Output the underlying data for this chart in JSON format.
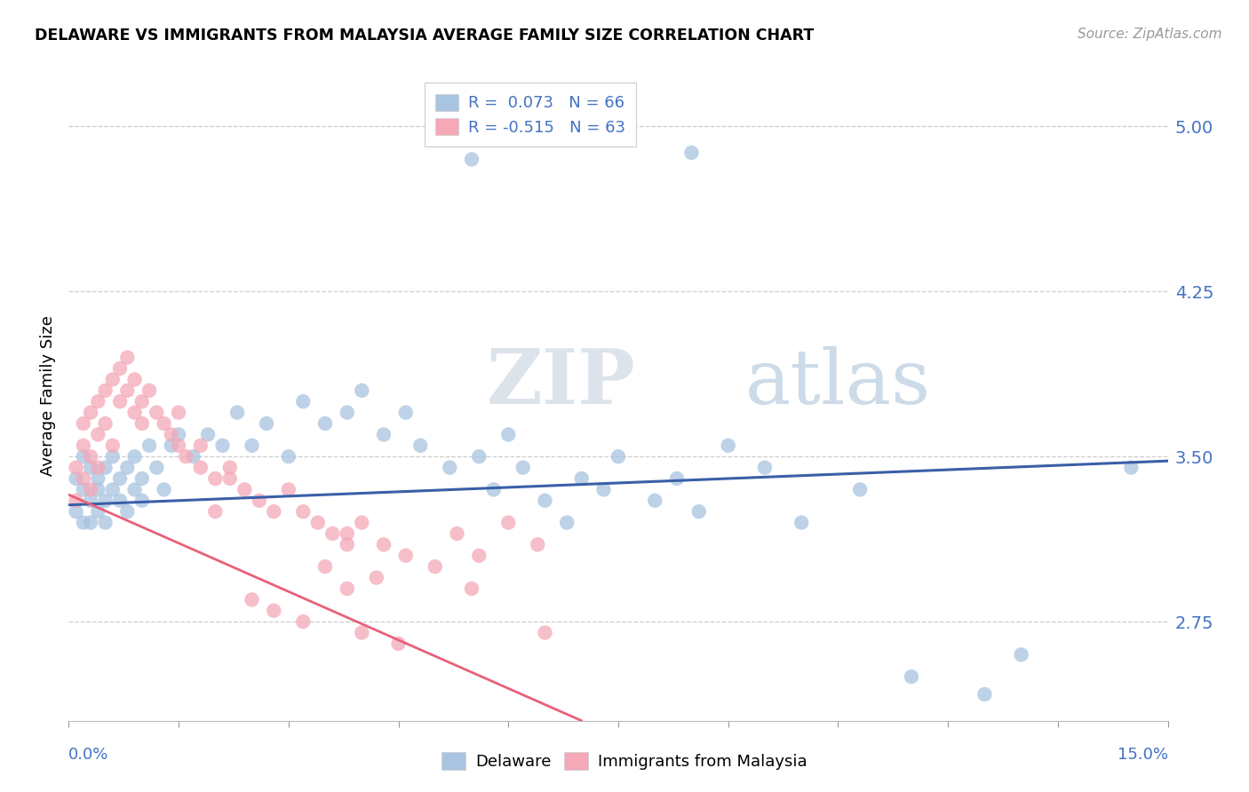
{
  "title": "DELAWARE VS IMMIGRANTS FROM MALAYSIA AVERAGE FAMILY SIZE CORRELATION CHART",
  "source": "Source: ZipAtlas.com",
  "ylabel": "Average Family Size",
  "yticks": [
    2.75,
    3.5,
    4.25,
    5.0
  ],
  "xlim": [
    0.0,
    0.15
  ],
  "ylim": [
    2.3,
    5.25
  ],
  "color_delaware": "#a8c4e0",
  "color_malaysia": "#f4a8b8",
  "color_line_delaware": "#3a5fa8",
  "color_line_malaysia": "#e8607a",
  "color_text_blue": "#4472c4",
  "watermark_zip": "ZIP",
  "watermark_atlas": "atlas",
  "del_x": [
    0.001,
    0.001,
    0.002,
    0.002,
    0.002,
    0.003,
    0.003,
    0.003,
    0.004,
    0.004,
    0.004,
    0.005,
    0.005,
    0.005,
    0.006,
    0.006,
    0.007,
    0.007,
    0.008,
    0.008,
    0.009,
    0.009,
    0.01,
    0.01,
    0.011,
    0.012,
    0.013,
    0.014,
    0.015,
    0.017,
    0.019,
    0.021,
    0.023,
    0.025,
    0.027,
    0.03,
    0.032,
    0.035,
    0.038,
    0.04,
    0.043,
    0.046,
    0.048,
    0.052,
    0.056,
    0.058,
    0.06,
    0.062,
    0.065,
    0.068,
    0.07,
    0.073,
    0.075,
    0.08,
    0.083,
    0.086,
    0.09,
    0.095,
    0.1,
    0.108,
    0.115,
    0.125,
    0.055,
    0.085,
    0.13,
    0.145
  ],
  "del_y": [
    3.25,
    3.4,
    3.2,
    3.35,
    3.5,
    3.3,
    3.2,
    3.45,
    3.35,
    3.25,
    3.4,
    3.3,
    3.45,
    3.2,
    3.35,
    3.5,
    3.4,
    3.3,
    3.45,
    3.25,
    3.35,
    3.5,
    3.4,
    3.3,
    3.55,
    3.45,
    3.35,
    3.55,
    3.6,
    3.5,
    3.6,
    3.55,
    3.7,
    3.55,
    3.65,
    3.5,
    3.75,
    3.65,
    3.7,
    3.8,
    3.6,
    3.7,
    3.55,
    3.45,
    3.5,
    3.35,
    3.6,
    3.45,
    3.3,
    3.2,
    3.4,
    3.35,
    3.5,
    3.3,
    3.4,
    3.25,
    3.55,
    3.45,
    3.2,
    3.35,
    2.5,
    2.42,
    4.85,
    4.88,
    2.6,
    3.45
  ],
  "mal_x": [
    0.001,
    0.001,
    0.002,
    0.002,
    0.002,
    0.003,
    0.003,
    0.003,
    0.004,
    0.004,
    0.004,
    0.005,
    0.005,
    0.006,
    0.006,
    0.007,
    0.007,
    0.008,
    0.008,
    0.009,
    0.009,
    0.01,
    0.01,
    0.011,
    0.012,
    0.013,
    0.014,
    0.015,
    0.016,
    0.018,
    0.02,
    0.022,
    0.024,
    0.026,
    0.028,
    0.03,
    0.032,
    0.034,
    0.036,
    0.038,
    0.04,
    0.043,
    0.046,
    0.05,
    0.053,
    0.056,
    0.06,
    0.064,
    0.055,
    0.035,
    0.038,
    0.042,
    0.02,
    0.025,
    0.028,
    0.032,
    0.038,
    0.04,
    0.045,
    0.065,
    0.015,
    0.018,
    0.022
  ],
  "mal_y": [
    3.3,
    3.45,
    3.55,
    3.4,
    3.65,
    3.5,
    3.7,
    3.35,
    3.6,
    3.75,
    3.45,
    3.8,
    3.65,
    3.85,
    3.55,
    3.75,
    3.9,
    3.8,
    3.95,
    3.7,
    3.85,
    3.65,
    3.75,
    3.8,
    3.7,
    3.65,
    3.6,
    3.55,
    3.5,
    3.45,
    3.4,
    3.45,
    3.35,
    3.3,
    3.25,
    3.35,
    3.25,
    3.2,
    3.15,
    3.1,
    3.2,
    3.1,
    3.05,
    3.0,
    3.15,
    3.05,
    3.2,
    3.1,
    2.9,
    3.0,
    3.15,
    2.95,
    3.25,
    2.85,
    2.8,
    2.75,
    2.9,
    2.7,
    2.65,
    2.7,
    3.7,
    3.55,
    3.4
  ]
}
